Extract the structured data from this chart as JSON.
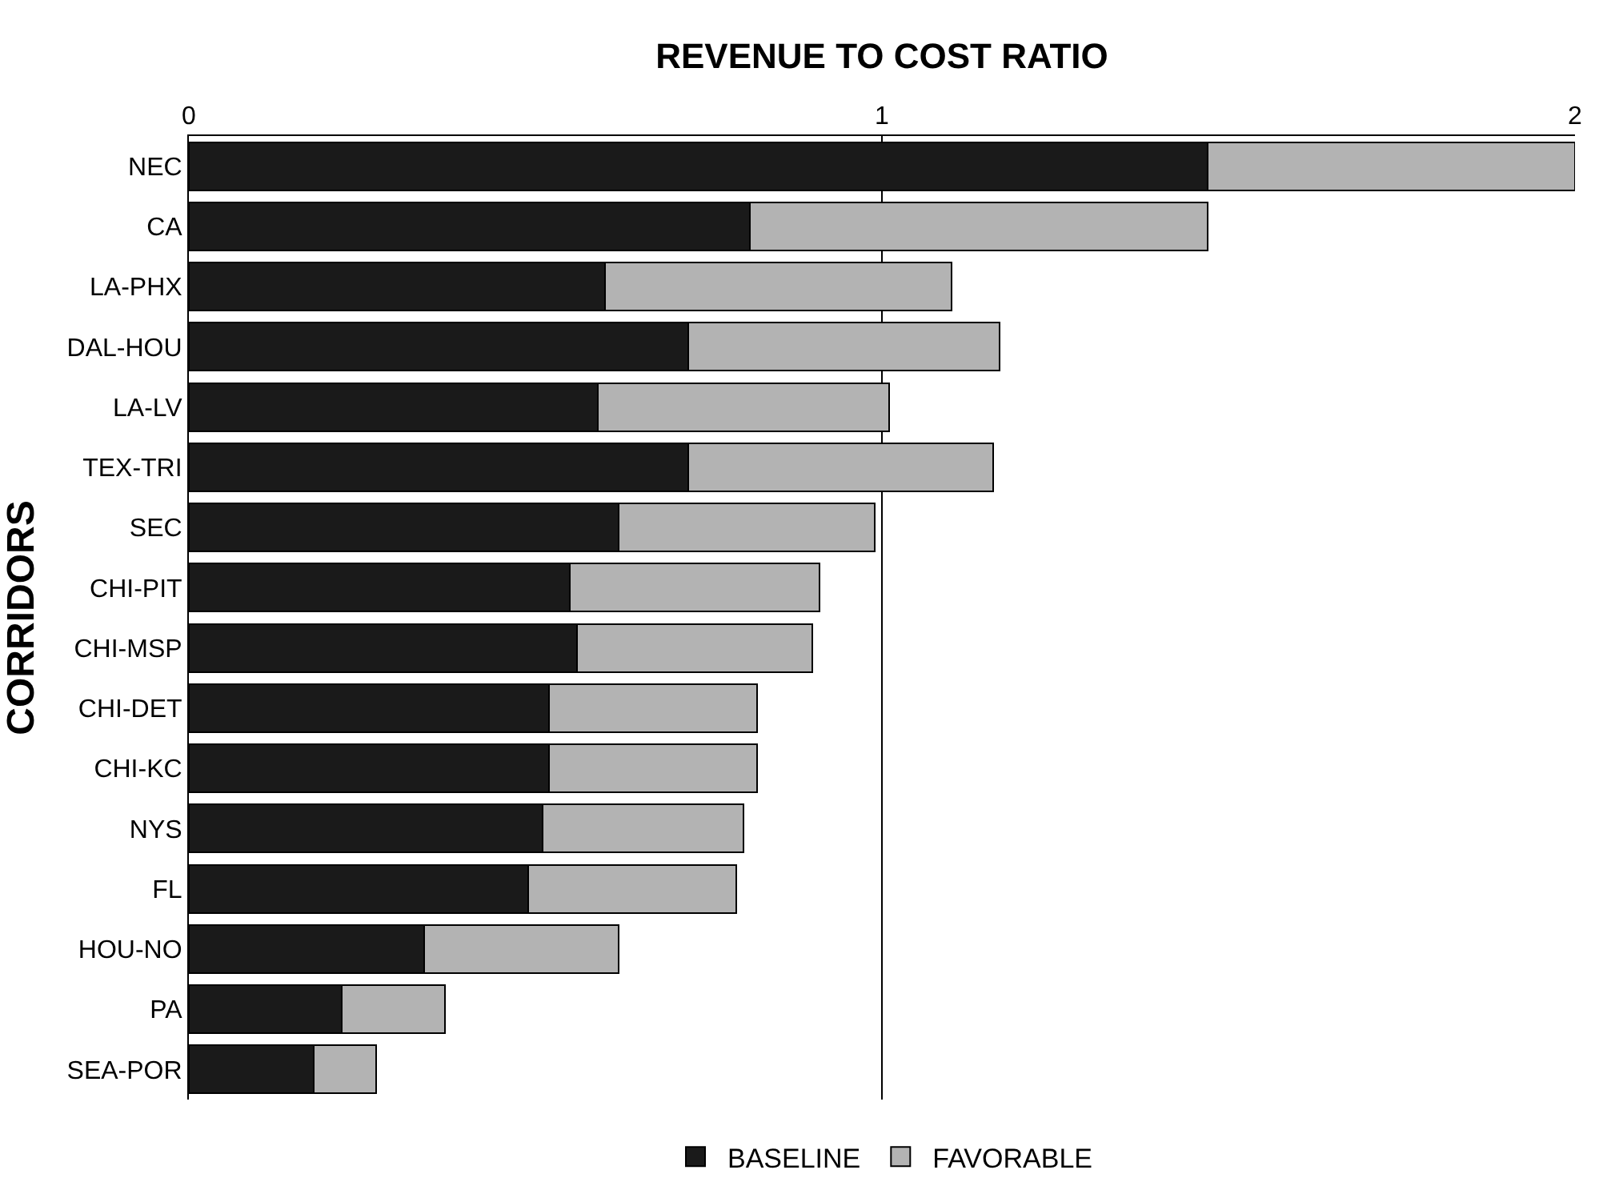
{
  "chart_data": {
    "type": "bar",
    "orientation": "horizontal",
    "stacked": true,
    "xlabel": "REVENUE TO COST RATIO",
    "ylabel": "CORRIDORS",
    "categories": [
      "NEC",
      "CA",
      "LA-PHX",
      "DAL-HOU",
      "LA-LV",
      "TEX-TRI",
      "SEC",
      "CHI-PIT",
      "CHI-MSP",
      "CHI-DET",
      "CHI-KC",
      "NYS",
      "FL",
      "HOU-NO",
      "PA",
      "SEA-POR"
    ],
    "series": [
      {
        "name": "BASELINE",
        "color": "#1a1a1a",
        "values": [
          1.47,
          0.81,
          0.6,
          0.72,
          0.59,
          0.72,
          0.62,
          0.55,
          0.56,
          0.52,
          0.52,
          0.51,
          0.49,
          0.34,
          0.22,
          0.18
        ]
      },
      {
        "name": "FAVORABLE",
        "color": "#b3b3b3",
        "values": [
          0.53,
          0.66,
          0.5,
          0.45,
          0.42,
          0.44,
          0.37,
          0.36,
          0.34,
          0.3,
          0.3,
          0.29,
          0.3,
          0.28,
          0.15,
          0.09
        ]
      }
    ],
    "xlim": [
      0,
      2
    ],
    "xticks": [
      0,
      1,
      2
    ],
    "grid": "x",
    "legend": "bottom"
  }
}
